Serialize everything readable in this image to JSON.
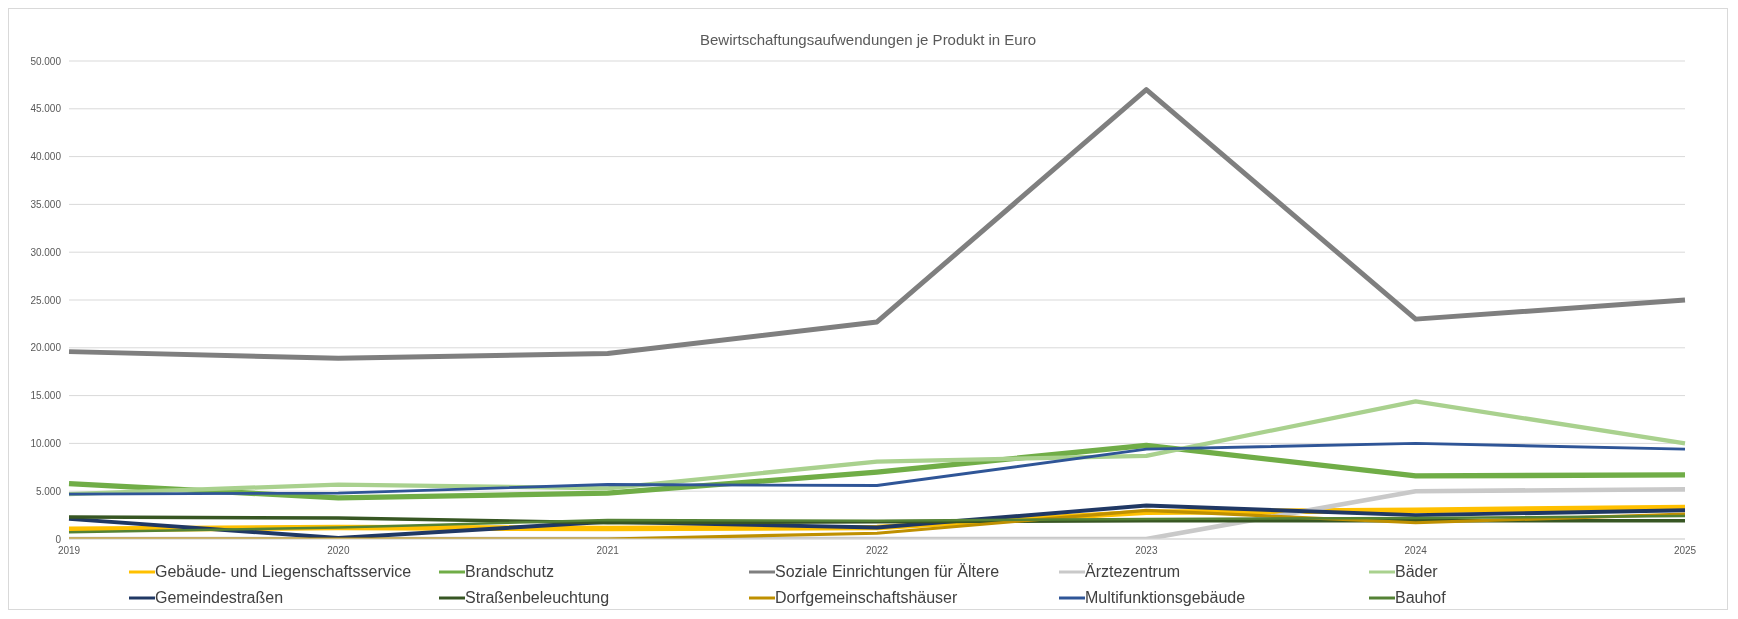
{
  "chart_data": {
    "type": "line",
    "title": "Bewirtschaftungsaufwendungen  je Produkt in Euro",
    "categories": [
      "2019",
      "2020",
      "2021",
      "2022",
      "2023",
      "2024",
      "2025"
    ],
    "ylim": [
      0,
      50000
    ],
    "yticks": [
      {
        "value": 0,
        "label": "0"
      },
      {
        "value": 5000,
        "label": "5.000"
      },
      {
        "value": 10000,
        "label": "10.000"
      },
      {
        "value": 15000,
        "label": "15.000"
      },
      {
        "value": 20000,
        "label": "20.000"
      },
      {
        "value": 25000,
        "label": "25.000"
      },
      {
        "value": 30000,
        "label": "30.000"
      },
      {
        "value": 35000,
        "label": "35.000"
      },
      {
        "value": 40000,
        "label": "40.000"
      },
      {
        "value": 45000,
        "label": "45.000"
      },
      {
        "value": 50000,
        "label": "50.000"
      }
    ],
    "grid": "y",
    "legend": "bottom",
    "marker": "none",
    "series": [
      {
        "name": "Gebäude- und Liegenschaftsservice",
        "color": "#ffc000",
        "values": [
          1000,
          1200,
          1100,
          1200,
          2800,
          3000,
          3300
        ]
      },
      {
        "name": "Brandschutz",
        "color": "#70ad47",
        "values": [
          5800,
          4300,
          4800,
          7000,
          9800,
          6600,
          6700
        ]
      },
      {
        "name": "Soziale Einrichtungen für Ältere",
        "color": "#7f7f7f",
        "values": [
          19600,
          18900,
          19400,
          22700,
          47000,
          23000,
          25000
        ]
      },
      {
        "name": "Ärztezentrum",
        "color": "#c9c9c9",
        "values": [
          0,
          0,
          0,
          0,
          0,
          5000,
          5200
        ]
      },
      {
        "name": "Bäder",
        "color": "#a9d18e",
        "values": [
          4700,
          5700,
          5300,
          8100,
          8700,
          14400,
          10000
        ]
      },
      {
        "name": "Gemeindestraßen",
        "color": "#203864",
        "values": [
          2100,
          100,
          1800,
          1200,
          3500,
          2500,
          3000
        ]
      },
      {
        "name": "Straßenbeleuchtung",
        "color": "#375623",
        "values": [
          2300,
          2200,
          1700,
          1800,
          1900,
          1900,
          1900
        ]
      },
      {
        "name": "Dorfgemeinschaftshäuser",
        "color": "#bf9000",
        "values": [
          0,
          0,
          0,
          600,
          3000,
          1700,
          2600
        ]
      },
      {
        "name": "Multifunktionsgebäude",
        "color": "#2f5597",
        "values": [
          4700,
          4800,
          5700,
          5600,
          9400,
          10000,
          9400
        ]
      },
      {
        "name": "Bauhof",
        "color": "#548235",
        "values": [
          700,
          1200,
          2000,
          1900,
          2100,
          2200,
          2400
        ]
      }
    ]
  }
}
